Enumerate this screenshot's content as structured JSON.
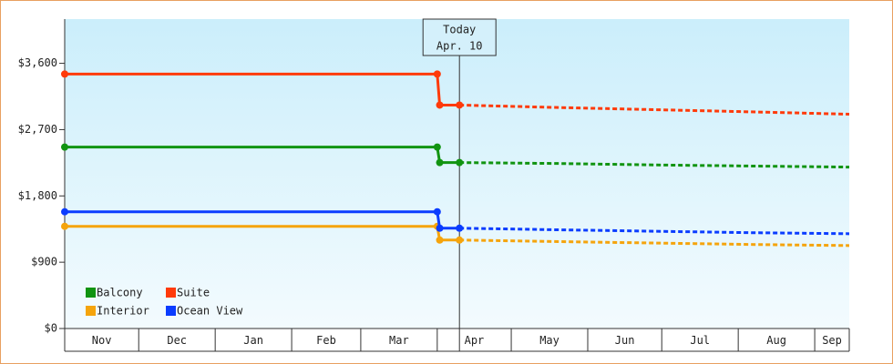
{
  "chart_data": {
    "type": "line",
    "x": [
      0,
      151,
      152,
      160,
      200,
      240,
      280,
      318
    ],
    "xlim": [
      0,
      318
    ],
    "xticks": [
      {
        "value": 0,
        "label": "Nov"
      },
      {
        "value": 30,
        "label": "Dec"
      },
      {
        "value": 61,
        "label": "Jan"
      },
      {
        "value": 92,
        "label": "Feb"
      },
      {
        "value": 120,
        "label": "Mar"
      },
      {
        "value": 151,
        "label": "Apr"
      },
      {
        "value": 181,
        "label": "May"
      },
      {
        "value": 212,
        "label": "Jun"
      },
      {
        "value": 242,
        "label": "Jul"
      },
      {
        "value": 273,
        "label": "Aug"
      },
      {
        "value": 304,
        "label": "Sep"
      }
    ],
    "ylim": [
      0,
      4200
    ],
    "yticks": [
      {
        "value": 0,
        "label": "$0"
      },
      {
        "value": 900,
        "label": "$900"
      },
      {
        "value": 1800,
        "label": "$1,800"
      },
      {
        "value": 2700,
        "label": "$2,700"
      },
      {
        "value": 3600,
        "label": "$3,600"
      }
    ],
    "today": {
      "x": 160,
      "label": [
        "Today",
        "Apr. 10"
      ]
    },
    "legend": "lower left",
    "series": [
      {
        "name": "Balcony",
        "color": "#119411",
        "values": [
          2463,
          2463,
          2253,
          2253,
          2240,
          2220,
          2205,
          2191
        ]
      },
      {
        "name": "Suite",
        "color": "#ff3a0a",
        "values": [
          3454,
          3454,
          3033,
          3033,
          3000,
          2970,
          2940,
          2909
        ]
      },
      {
        "name": "Interior",
        "color": "#f5a40c",
        "values": [
          1387,
          1387,
          1201,
          1201,
          1180,
          1160,
          1140,
          1126
        ]
      },
      {
        "name": "Ocean View",
        "color": "#0a3cff",
        "values": [
          1585,
          1585,
          1362,
          1362,
          1340,
          1320,
          1300,
          1287
        ]
      }
    ]
  }
}
